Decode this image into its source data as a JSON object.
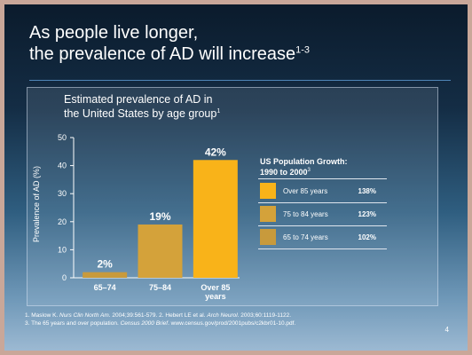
{
  "slide": {
    "title_line1": "As people live longer,",
    "title_line2": "the prevalence of AD will increase",
    "title_ref": "1-3",
    "page_number": "4"
  },
  "chart_data": {
    "type": "bar",
    "title": "Estimated prevalence of AD in the United States by age group",
    "title_line1": "Estimated prevalence of AD in",
    "title_line2": "the United States by age group",
    "title_ref": "1",
    "ylabel": "Prevalence of AD (%)",
    "xlabel": "",
    "ylim": [
      0,
      50
    ],
    "yticks": [
      0,
      10,
      20,
      30,
      40,
      50
    ],
    "categories": [
      "65–74",
      "75–84",
      "Over 85 years"
    ],
    "category_labels": [
      [
        "65–74"
      ],
      [
        "75–84"
      ],
      [
        "Over 85",
        "years"
      ]
    ],
    "values": [
      2,
      19,
      42
    ],
    "data_labels": [
      "2%",
      "19%",
      "42%"
    ],
    "colors": [
      "#c89a3c",
      "#d4a23a",
      "#f9b319"
    ],
    "grid": false
  },
  "legend": {
    "title_line1": "US Population Growth:",
    "title_line2": "1990 to 2000",
    "title_ref": "3",
    "items": [
      {
        "label": "Over 85 years",
        "value": "138%",
        "color": "#f9b319"
      },
      {
        "label": "75 to 84 years",
        "value": "123%",
        "color": "#d4a23a"
      },
      {
        "label": "65 to 74 years",
        "value": "102%",
        "color": "#c89a3c"
      }
    ]
  },
  "footnotes": {
    "n1": "1.",
    "ref1_author": " Maslow K. ",
    "ref1_journal": "Nurs Clin North Am",
    "ref1_rest": ". 2004;39:561-579.  ",
    "n2": "2.",
    "ref2_author": " Hebert LE et al. ",
    "ref2_journal": "Arch Neurol",
    "ref2_rest": ". 2003;60:1119-1122.",
    "n3": "3.",
    "ref3_author": "  The 65 years and over population. ",
    "ref3_journal": "Census 2000 Brief",
    "ref3_rest": ". www.census.gov/prod/2001pubs/c2kbr01-10.pdf."
  }
}
